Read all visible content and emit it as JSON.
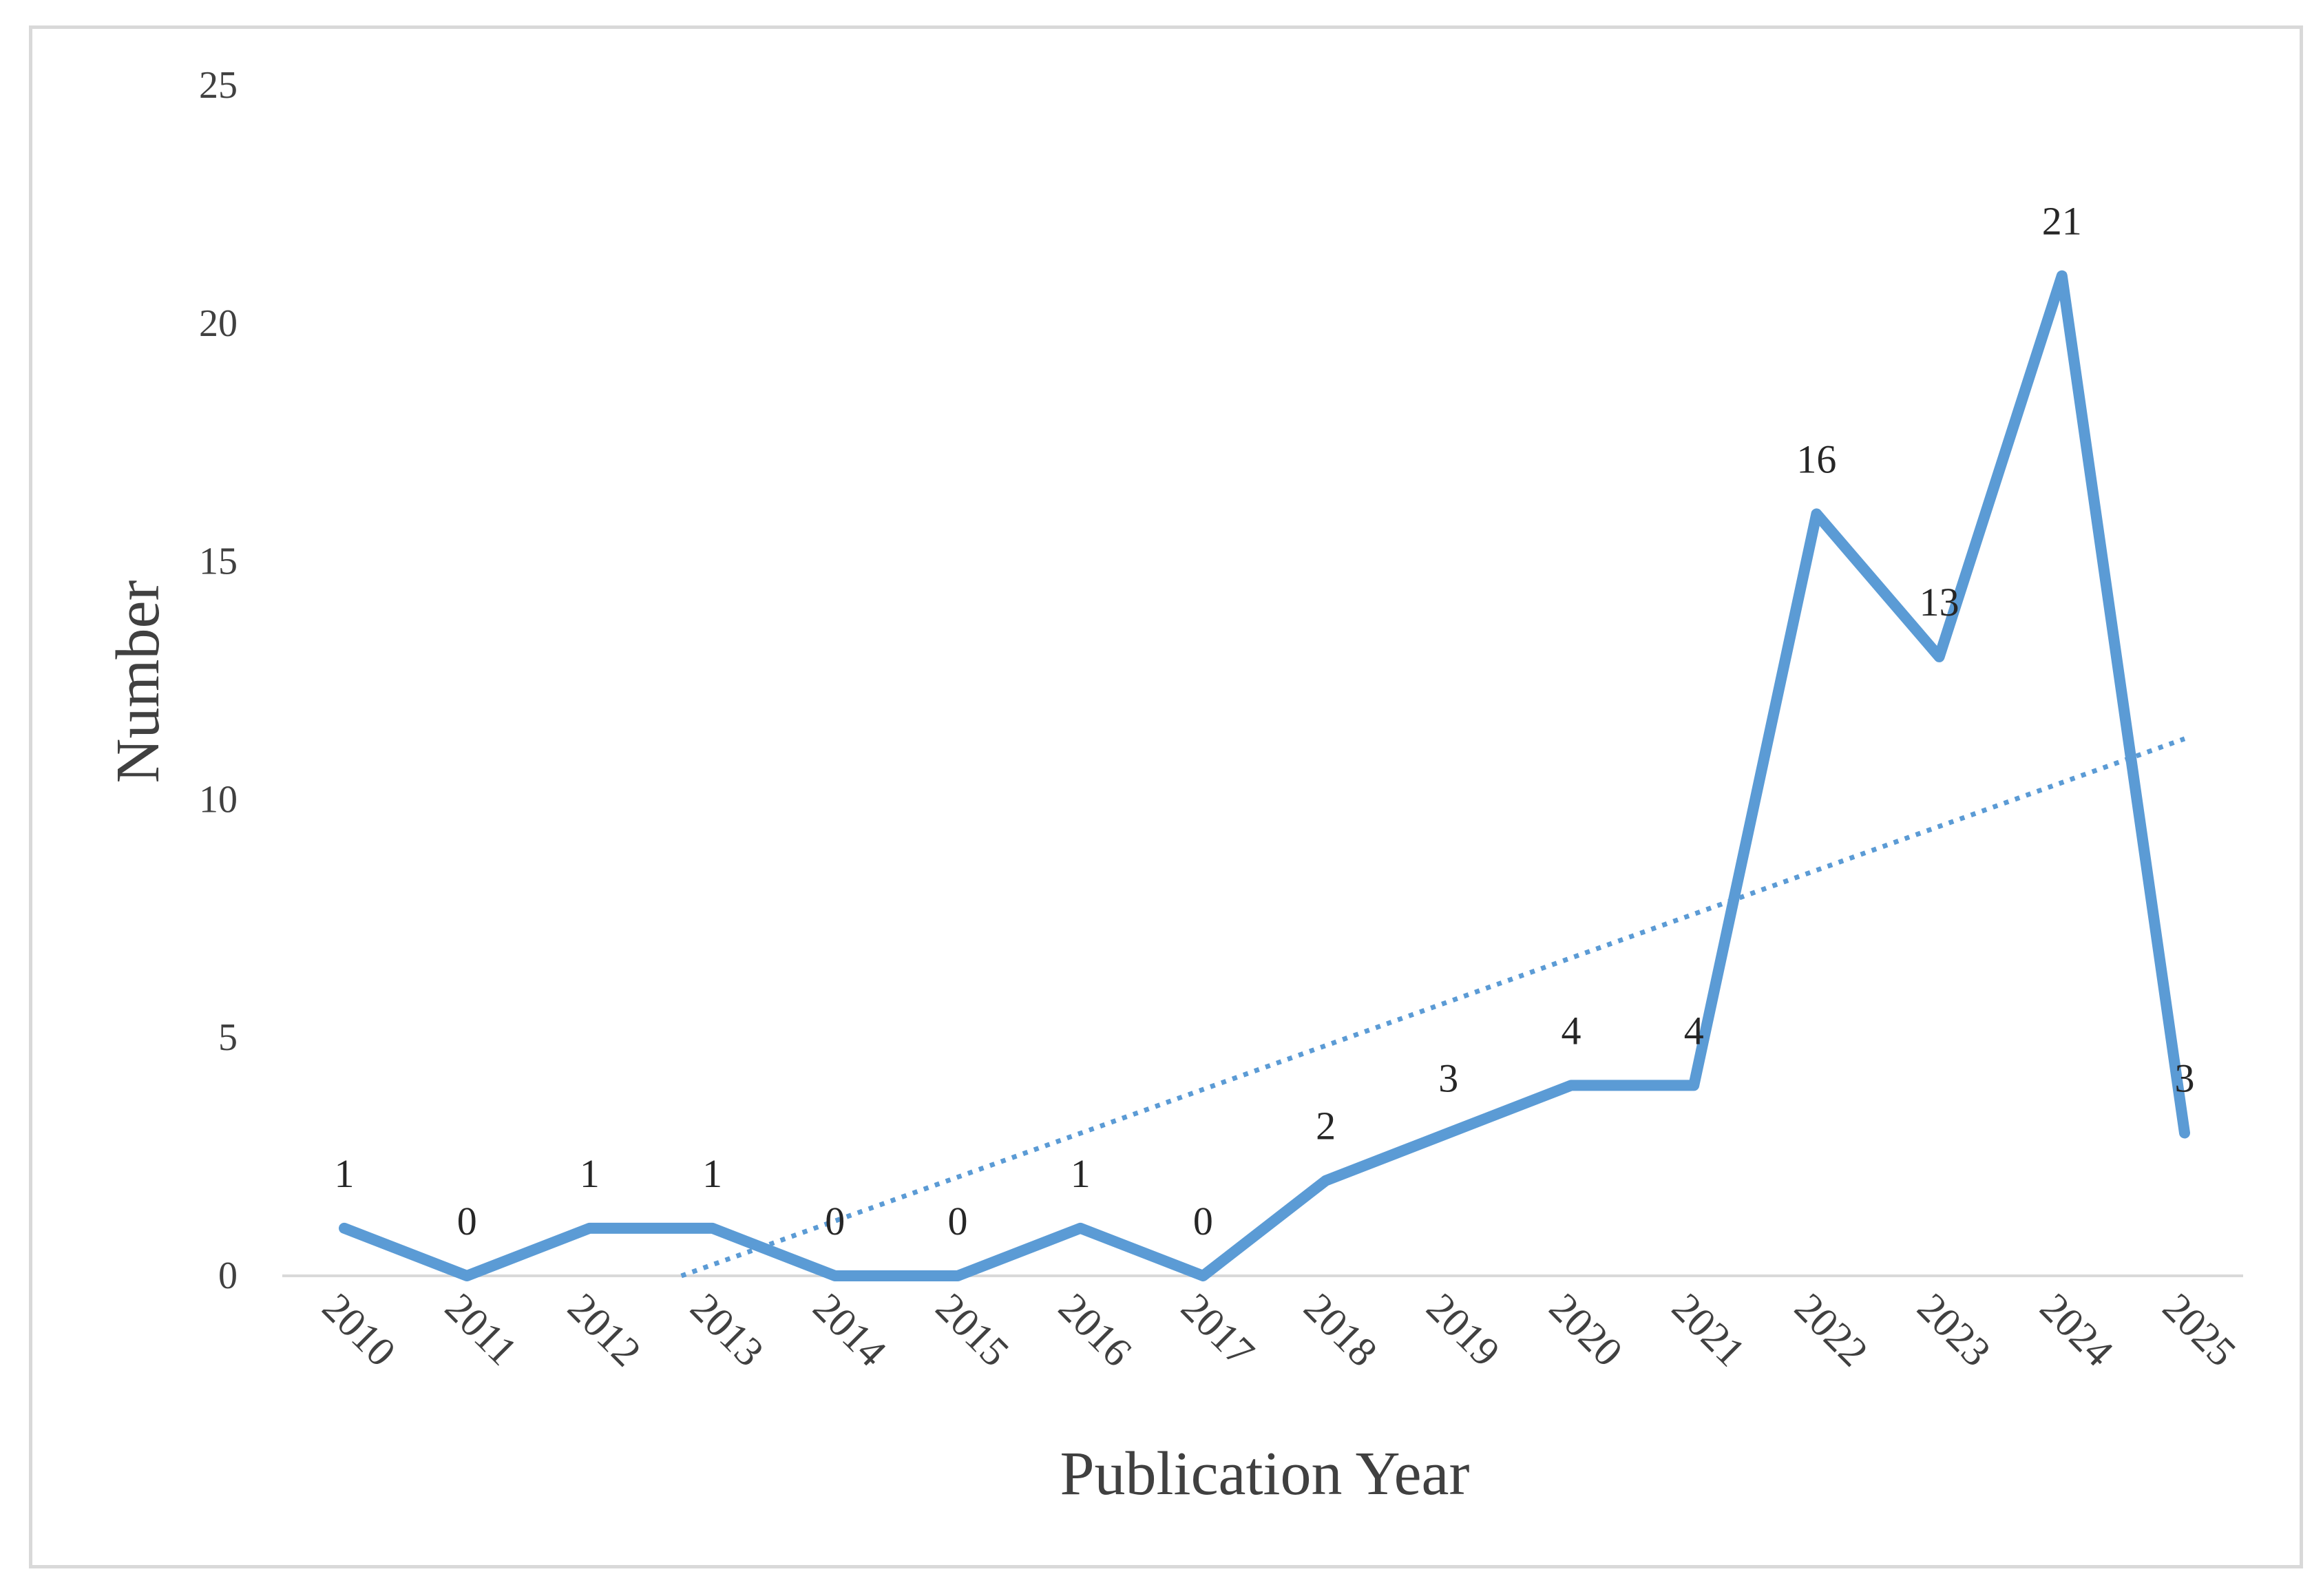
{
  "chart_data": {
    "type": "line",
    "categories": [
      "2010",
      "2011",
      "2012",
      "2013",
      "2014",
      "2015",
      "2016",
      "2017",
      "2018",
      "2019",
      "2020",
      "2021",
      "2022",
      "2023",
      "2024",
      "2025"
    ],
    "series": [
      {
        "values": [
          1,
          0,
          1,
          1,
          0,
          0,
          1,
          0,
          2,
          3,
          4,
          4,
          16,
          13,
          21,
          3
        ]
      }
    ],
    "trendline": {
      "type": "linear",
      "style": "dotted"
    },
    "data_labels": [
      "1",
      "0",
      "1",
      "1",
      "0",
      "0",
      "1",
      "0",
      "2",
      "3",
      "4",
      "4",
      "16",
      "13",
      "21",
      "3"
    ],
    "xlabel": "Publication Year",
    "ylabel": "Number",
    "ylim": [
      0,
      25
    ],
    "yticks": [
      "0",
      "5",
      "10",
      "15",
      "20",
      "25"
    ],
    "grid": false,
    "legend": "none",
    "colors": {
      "line": "#5b9bd5",
      "axis": "#d9d9d9",
      "text": "#404040"
    }
  }
}
